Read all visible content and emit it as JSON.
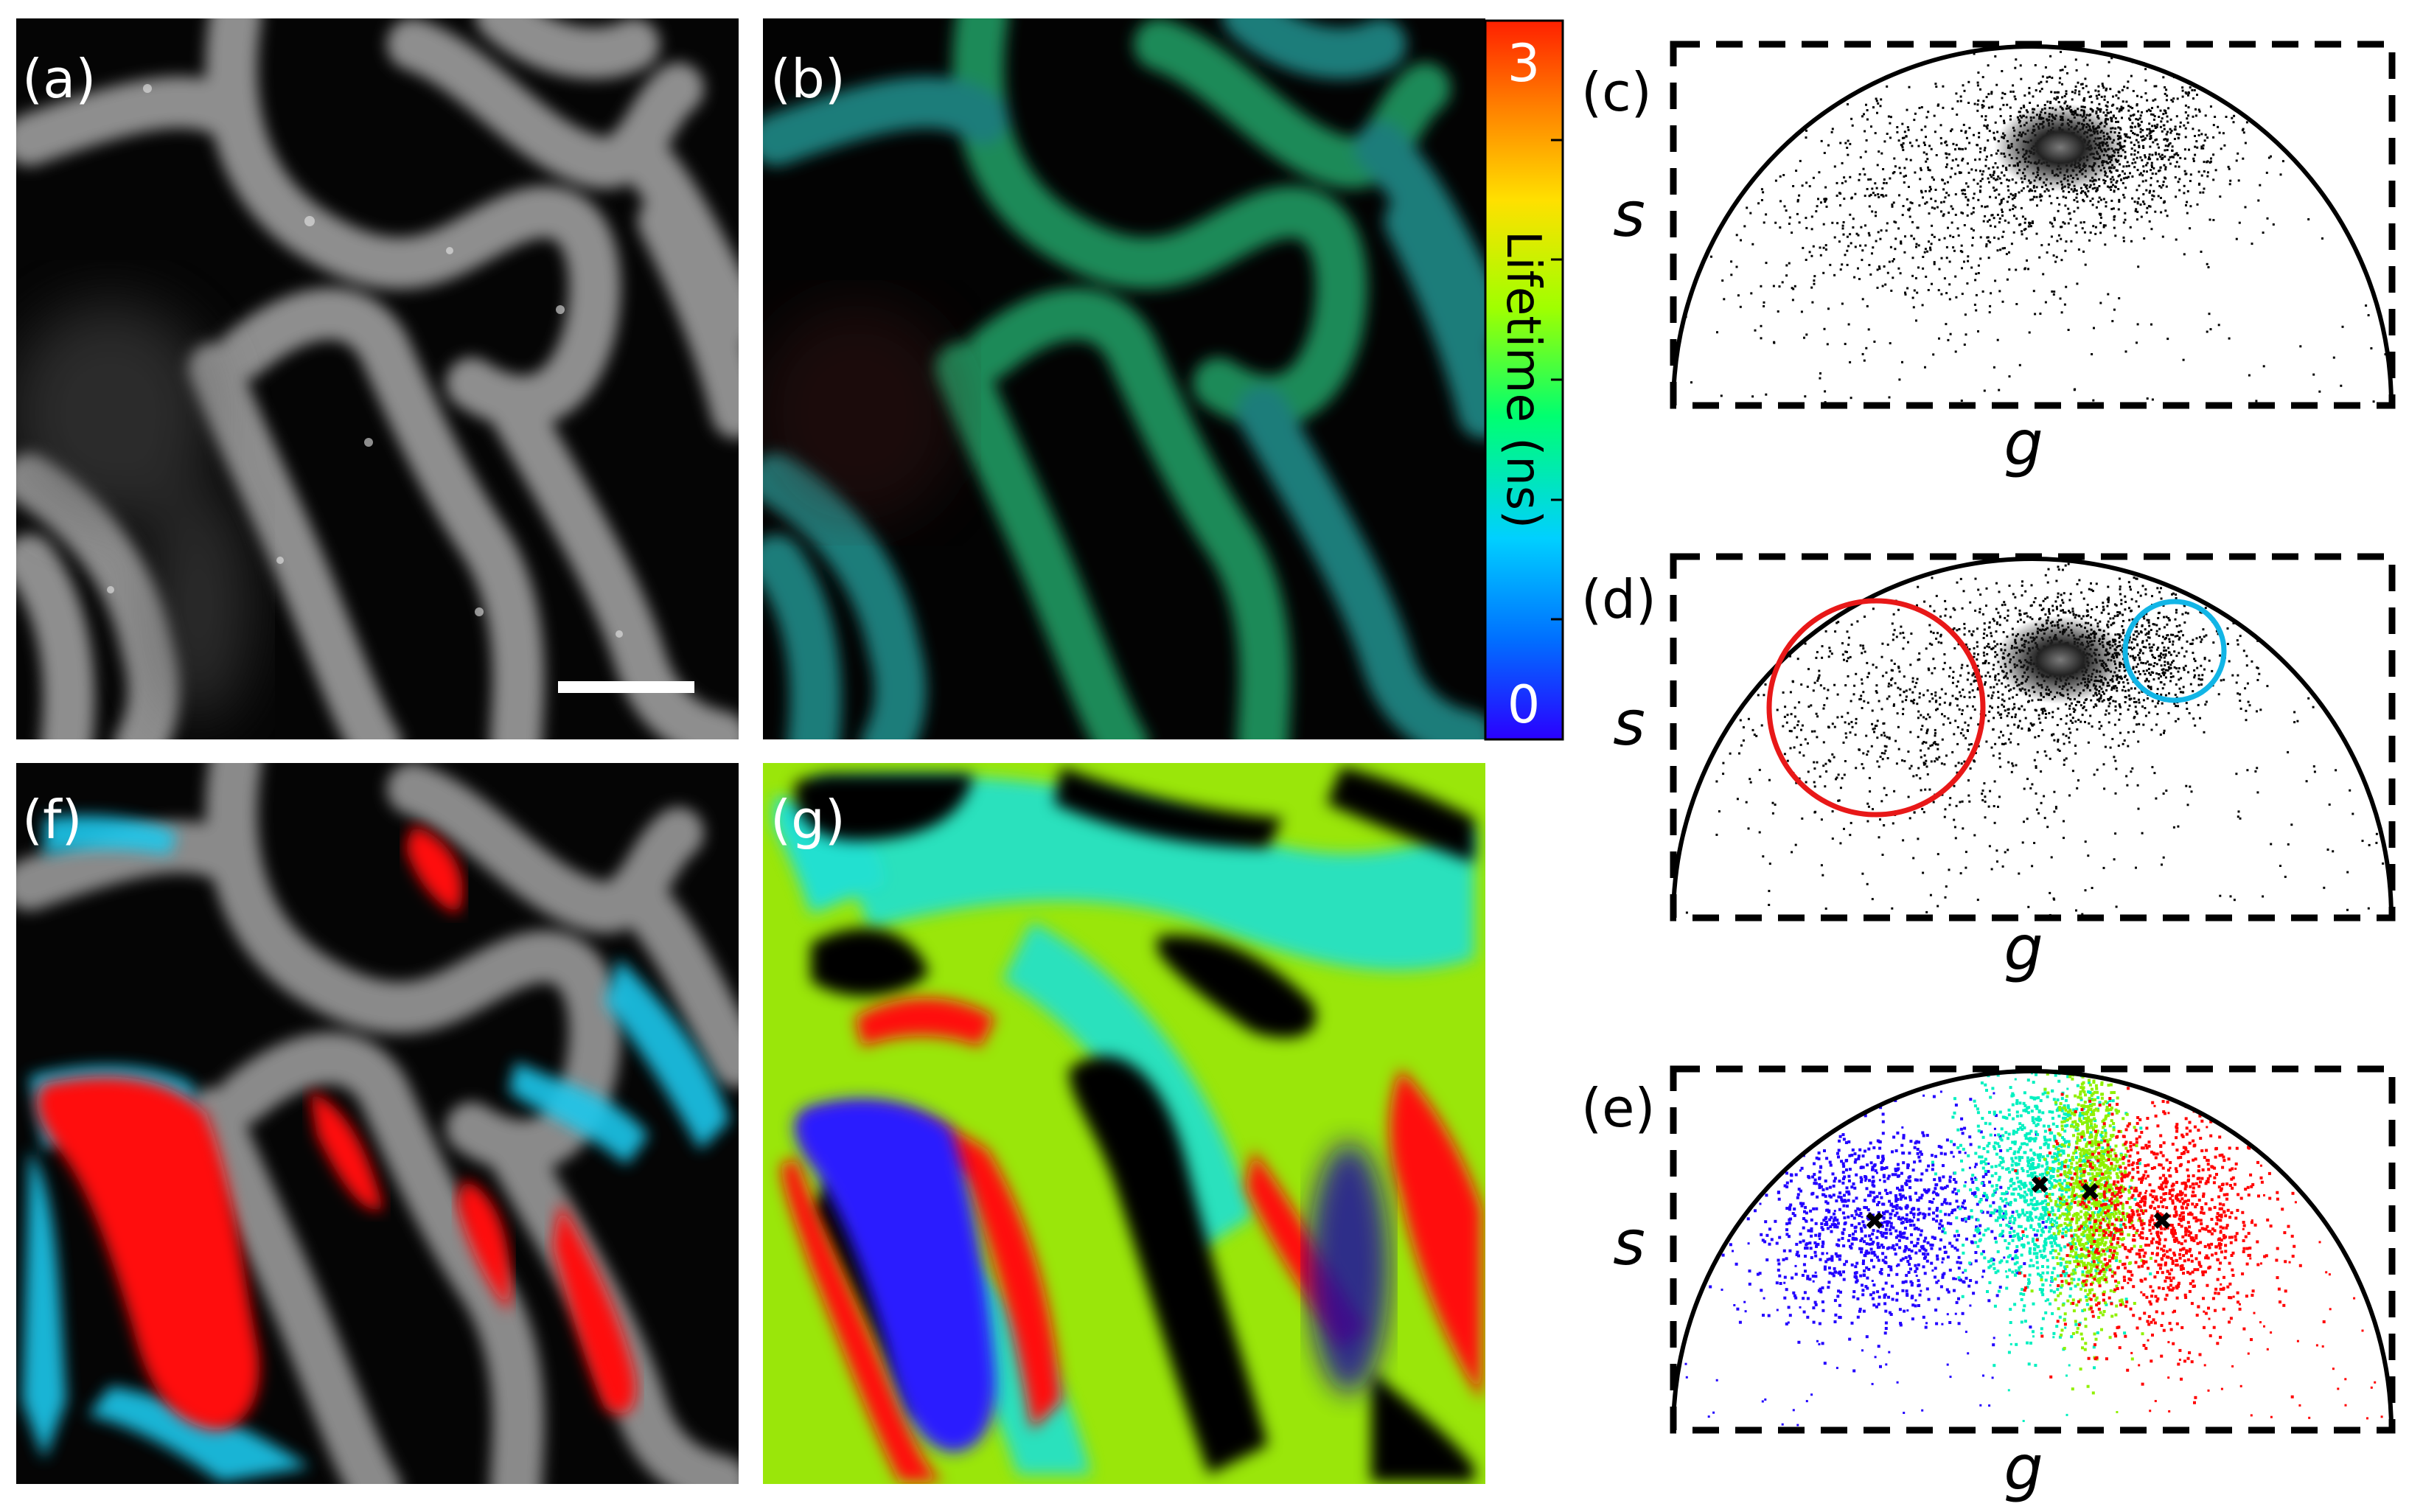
{
  "panels": {
    "a": {
      "label": "(a)"
    },
    "b": {
      "label": "(b)"
    },
    "c": {
      "label": "(c)"
    },
    "d": {
      "label": "(d)"
    },
    "e": {
      "label": "(e)"
    },
    "f": {
      "label": "(f)"
    },
    "g": {
      "label": "(g)"
    }
  },
  "colorbar": {
    "title": "Lifetime (ns)",
    "min_label": "0",
    "max_label": "3",
    "range": [
      0,
      3
    ],
    "colors": [
      "#2a00ff",
      "#0090ff",
      "#00e0ff",
      "#00ff80",
      "#a0ff00",
      "#ffe000",
      "#ff9000",
      "#ff2a00"
    ]
  },
  "phasor_axes": {
    "x_label": "g",
    "y_label": "s"
  },
  "chart_data": [
    {
      "type": "scatter",
      "panel": "(c)",
      "xlabel": "g",
      "ylabel": "s",
      "xlim": [
        0,
        1
      ],
      "ylim": [
        0,
        0.5
      ],
      "universal_circle": true,
      "clusters": [
        {
          "center": [
            0.58,
            0.36
          ],
          "spread": [
            0.09,
            0.05
          ],
          "density": "high"
        },
        {
          "center": [
            0.35,
            0.28
          ],
          "spread": [
            0.14,
            0.08
          ],
          "density": "low"
        }
      ]
    },
    {
      "type": "scatter",
      "panel": "(d)",
      "xlabel": "g",
      "ylabel": "s",
      "xlim": [
        0,
        1
      ],
      "ylim": [
        0,
        0.5
      ],
      "universal_circle": true,
      "rois": [
        {
          "color": "#ff0000",
          "center": [
            0.28,
            0.29
          ],
          "radius": 0.15
        },
        {
          "color": "#00b4e6",
          "center": [
            0.77,
            0.35
          ],
          "radius": 0.07
        }
      ]
    },
    {
      "type": "scatter",
      "panel": "(e)",
      "xlabel": "g",
      "ylabel": "s",
      "xlim": [
        0,
        1
      ],
      "ylim": [
        0,
        0.5
      ],
      "universal_circle": true,
      "clusters": [
        {
          "color": "#2200ff",
          "center": [
            0.28,
            0.29
          ],
          "spread": [
            0.09,
            0.07
          ]
        },
        {
          "color": "#00f0c0",
          "center": [
            0.51,
            0.34
          ],
          "spread": [
            0.05,
            0.09
          ]
        },
        {
          "color": "#90f000",
          "center": [
            0.58,
            0.33
          ],
          "spread": [
            0.025,
            0.09
          ]
        },
        {
          "color": "#ff0000",
          "center": [
            0.68,
            0.29
          ],
          "spread": [
            0.07,
            0.08
          ]
        }
      ],
      "centroids": [
        [
          0.28,
          0.29
        ],
        [
          0.51,
          0.34
        ],
        [
          0.58,
          0.33
        ],
        [
          0.68,
          0.29
        ]
      ]
    }
  ]
}
